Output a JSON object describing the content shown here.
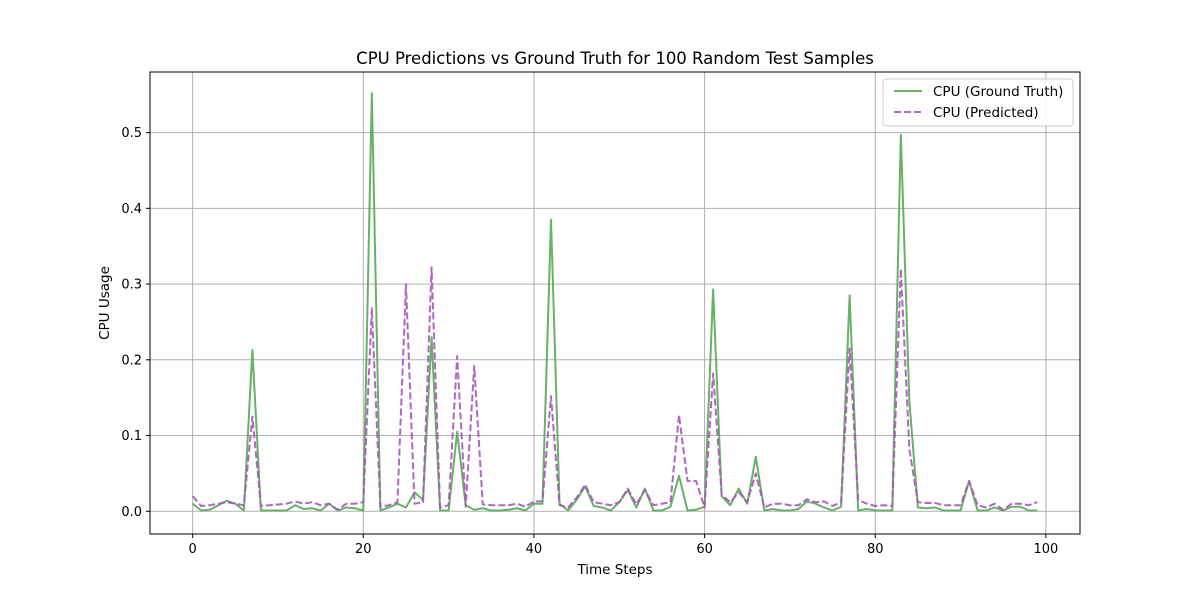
{
  "chart_data": {
    "type": "line",
    "title": "CPU Predictions vs Ground Truth for 100 Random Test Samples",
    "xlabel": "Time Steps",
    "ylabel": "CPU Usage",
    "xlim": [
      -5,
      104
    ],
    "ylim": [
      -0.03,
      0.58
    ],
    "xticks": [
      0,
      20,
      40,
      60,
      80,
      100
    ],
    "yticks": [
      0.0,
      0.1,
      0.2,
      0.3,
      0.4,
      0.5
    ],
    "xtick_labels": [
      "0",
      "20",
      "40",
      "60",
      "80",
      "100"
    ],
    "ytick_labels": [
      "0.0",
      "0.1",
      "0.2",
      "0.3",
      "0.4",
      "0.5"
    ],
    "grid": true,
    "legend_position": "top-right",
    "series": [
      {
        "name": "CPU (Ground Truth)",
        "color": "#55aa55",
        "style": "solid",
        "values": [
          0.01,
          0.001,
          0.002,
          0.008,
          0.014,
          0.01,
          0.001,
          0.213,
          0.001,
          0.001,
          0.001,
          0.001,
          0.008,
          0.003,
          0.004,
          0.001,
          0.01,
          0.001,
          0.005,
          0.004,
          0.001,
          0.552,
          0.001,
          0.005,
          0.01,
          0.005,
          0.025,
          0.015,
          0.23,
          0.001,
          0.001,
          0.105,
          0.008,
          0.002,
          0.004,
          0.001,
          0.001,
          0.002,
          0.004,
          0.001,
          0.01,
          0.01,
          0.385,
          0.01,
          0.001,
          0.015,
          0.033,
          0.007,
          0.005,
          0.001,
          0.012,
          0.028,
          0.005,
          0.03,
          0.001,
          0.001,
          0.006,
          0.047,
          0.001,
          0.002,
          0.006,
          0.293,
          0.02,
          0.008,
          0.03,
          0.01,
          0.072,
          0.001,
          0.003,
          0.001,
          0.001,
          0.003,
          0.013,
          0.01,
          0.005,
          0.001,
          0.006,
          0.285,
          0.001,
          0.003,
          0.001,
          0.001,
          0.001,
          0.497,
          0.145,
          0.005,
          0.004,
          0.005,
          0.001,
          0.001,
          0.001,
          0.04,
          0.001,
          0.001,
          0.005,
          0.001,
          0.006,
          0.006,
          0.001,
          0.001
        ]
      },
      {
        "name": "CPU (Predicted)",
        "color": "#aa55bb",
        "style": "dashed",
        "values": [
          0.02,
          0.007,
          0.008,
          0.01,
          0.012,
          0.01,
          0.008,
          0.125,
          0.007,
          0.008,
          0.009,
          0.01,
          0.013,
          0.01,
          0.012,
          0.008,
          0.01,
          0.002,
          0.01,
          0.01,
          0.012,
          0.268,
          0.006,
          0.008,
          0.012,
          0.3,
          0.01,
          0.012,
          0.322,
          0.005,
          0.008,
          0.205,
          0.006,
          0.192,
          0.009,
          0.008,
          0.008,
          0.008,
          0.01,
          0.006,
          0.013,
          0.013,
          0.152,
          0.008,
          0.005,
          0.018,
          0.035,
          0.012,
          0.01,
          0.008,
          0.012,
          0.03,
          0.009,
          0.028,
          0.008,
          0.01,
          0.012,
          0.127,
          0.04,
          0.04,
          0.005,
          0.182,
          0.022,
          0.012,
          0.025,
          0.012,
          0.05,
          0.005,
          0.01,
          0.01,
          0.008,
          0.008,
          0.016,
          0.012,
          0.013,
          0.007,
          0.012,
          0.215,
          0.015,
          0.01,
          0.007,
          0.008,
          0.007,
          0.32,
          0.082,
          0.012,
          0.011,
          0.011,
          0.008,
          0.008,
          0.008,
          0.04,
          0.008,
          0.005,
          0.01,
          0.002,
          0.01,
          0.01,
          0.008,
          0.012
        ]
      }
    ]
  }
}
